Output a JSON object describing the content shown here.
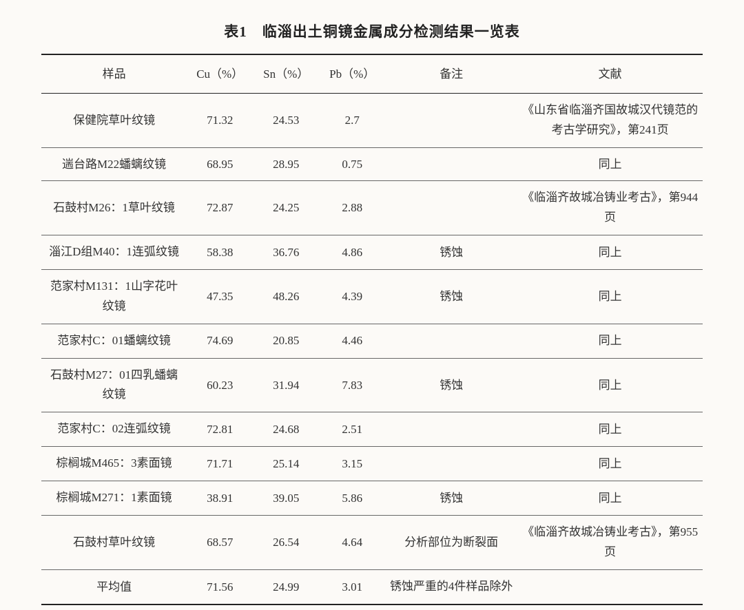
{
  "table": {
    "title": "表1　临淄出土铜镜金属成分检测结果一览表",
    "columns": {
      "sample": "样品",
      "cu": "Cu（%）",
      "sn": "Sn（%）",
      "pb": "Pb（%）",
      "note": "备注",
      "ref": "文献"
    },
    "rows": [
      {
        "sample": "保健院草叶纹镜",
        "cu": "71.32",
        "sn": "24.53",
        "pb": "2.7",
        "note": "",
        "ref": "《山东省临淄齐国故城汉代镜范的考古学研究》，第241页"
      },
      {
        "sample": "遄台路M22蟠螭纹镜",
        "cu": "68.95",
        "sn": "28.95",
        "pb": "0.75",
        "note": "",
        "ref": "同上"
      },
      {
        "sample": "石鼓村M26：1草叶纹镜",
        "cu": "72.87",
        "sn": "24.25",
        "pb": "2.88",
        "note": "",
        "ref": "《临淄齐故城冶铸业考古》，第944页"
      },
      {
        "sample": "淄江D组M40：1连弧纹镜",
        "cu": "58.38",
        "sn": "36.76",
        "pb": "4.86",
        "note": "锈蚀",
        "ref": "同上"
      },
      {
        "sample": "范家村M131：1山字花叶纹镜",
        "cu": "47.35",
        "sn": "48.26",
        "pb": "4.39",
        "note": "锈蚀",
        "ref": "同上"
      },
      {
        "sample": "范家村C：01蟠螭纹镜",
        "cu": "74.69",
        "sn": "20.85",
        "pb": "4.46",
        "note": "",
        "ref": "同上"
      },
      {
        "sample": "石鼓村M27：01四乳蟠螭纹镜",
        "cu": "60.23",
        "sn": "31.94",
        "pb": "7.83",
        "note": "锈蚀",
        "ref": "同上"
      },
      {
        "sample": "范家村C：02连弧纹镜",
        "cu": "72.81",
        "sn": "24.68",
        "pb": "2.51",
        "note": "",
        "ref": "同上"
      },
      {
        "sample": "棕榈城M465：3素面镜",
        "cu": "71.71",
        "sn": "25.14",
        "pb": "3.15",
        "note": "",
        "ref": "同上"
      },
      {
        "sample": "棕榈城M271：1素面镜",
        "cu": "38.91",
        "sn": "39.05",
        "pb": "5.86",
        "note": "锈蚀",
        "ref": "同上"
      },
      {
        "sample": "石鼓村草叶纹镜",
        "cu": "68.57",
        "sn": "26.54",
        "pb": "4.64",
        "note": "分析部位为断裂面",
        "ref": "《临淄齐故城冶铸业考古》，第955页"
      },
      {
        "sample": "平均值",
        "cu": "71.56",
        "sn": "24.99",
        "pb": "3.01",
        "note": "锈蚀严重的4件样品除外",
        "ref": ""
      }
    ],
    "styling": {
      "background_color": "#fcfaf7",
      "text_color": "#333333",
      "border_color_heavy": "#222222",
      "border_color_light": "#666666",
      "border_width_heavy": 2,
      "border_width_light": 1,
      "title_fontsize": 21,
      "cell_fontsize": 17,
      "font_family": "SimSun/宋体 serif",
      "column_widths_pct": {
        "sample": 22,
        "cu": 10,
        "sn": 10,
        "pb": 10,
        "note": 20,
        "ref": 28
      },
      "row_height_min": 44
    }
  }
}
